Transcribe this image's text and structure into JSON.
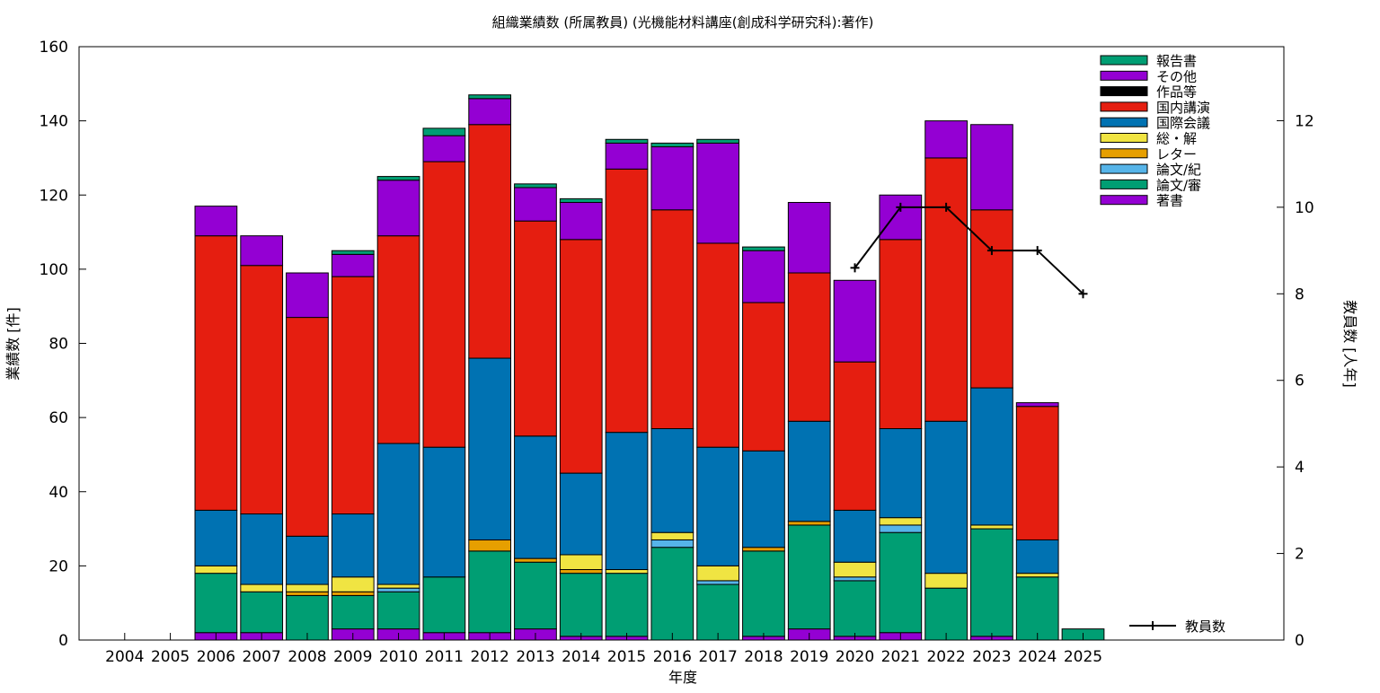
{
  "chart_data": {
    "type": "bar",
    "stacked": true,
    "title": "組織業績数 (所属教員) (光機能材料講座(創成科学研究科):著作)",
    "xlabel": "年度",
    "ylabel": "業績数 [件]",
    "y2label": "教員数 [人年]",
    "ylim": [
      0,
      160
    ],
    "y2lim": [
      0,
      13.71
    ],
    "yticks": [
      0,
      20,
      40,
      60,
      80,
      100,
      120,
      140,
      160
    ],
    "y2ticks": [
      0,
      2,
      4,
      6,
      8,
      10,
      12
    ],
    "categories": [
      "2004",
      "2005",
      "2006",
      "2007",
      "2008",
      "2009",
      "2010",
      "2011",
      "2012",
      "2013",
      "2014",
      "2015",
      "2016",
      "2017",
      "2018",
      "2019",
      "2020",
      "2021",
      "2022",
      "2023",
      "2024",
      "2025"
    ],
    "legend_position": "top-right",
    "grid": false,
    "series": [
      {
        "name": "著書",
        "color": "#9400d3",
        "values": [
          0,
          0,
          2,
          2,
          0,
          3,
          3,
          2,
          2,
          3,
          1,
          1,
          0,
          0,
          1,
          3,
          1,
          2,
          0,
          1,
          0,
          0
        ]
      },
      {
        "name": "論文/審",
        "color": "#009e73",
        "values": [
          0,
          0,
          16,
          11,
          12,
          9,
          10,
          15,
          22,
          18,
          17,
          17,
          25,
          15,
          23,
          28,
          15,
          27,
          14,
          29,
          17,
          3
        ]
      },
      {
        "name": "論文/紀",
        "color": "#56b4e9",
        "values": [
          0,
          0,
          0,
          0,
          0,
          0,
          1,
          0,
          0,
          0,
          0,
          0,
          2,
          1,
          0,
          0,
          1,
          2,
          0,
          0,
          0,
          0
        ]
      },
      {
        "name": "レター",
        "color": "#e69f00",
        "values": [
          0,
          0,
          0,
          0,
          1,
          1,
          0,
          0,
          3,
          1,
          1,
          0,
          0,
          0,
          1,
          1,
          0,
          0,
          0,
          0,
          0,
          0
        ]
      },
      {
        "name": "総・解",
        "color": "#f0e442",
        "values": [
          0,
          0,
          2,
          2,
          2,
          4,
          1,
          0,
          0,
          0,
          4,
          1,
          2,
          4,
          0,
          0,
          4,
          2,
          4,
          1,
          1,
          0
        ]
      },
      {
        "name": "国際会議",
        "color": "#0072b2",
        "values": [
          0,
          0,
          15,
          19,
          13,
          17,
          38,
          35,
          49,
          33,
          22,
          37,
          28,
          32,
          26,
          27,
          14,
          24,
          41,
          37,
          9,
          0
        ]
      },
      {
        "name": "国内講演",
        "color": "#e51e10",
        "values": [
          0,
          0,
          74,
          67,
          59,
          64,
          56,
          77,
          63,
          58,
          63,
          71,
          59,
          55,
          40,
          40,
          40,
          51,
          71,
          48,
          36,
          0
        ]
      },
      {
        "name": "作品等",
        "color": "#000000",
        "values": [
          0,
          0,
          0,
          0,
          0,
          0,
          0,
          0,
          0,
          0,
          0,
          0,
          0,
          0,
          0,
          0,
          0,
          0,
          0,
          0,
          0,
          0
        ]
      },
      {
        "name": "その他",
        "color": "#9400d3",
        "values": [
          0,
          0,
          8,
          8,
          12,
          6,
          15,
          7,
          7,
          9,
          10,
          7,
          17,
          27,
          14,
          19,
          22,
          12,
          10,
          23,
          1,
          0
        ]
      },
      {
        "name": "報告書",
        "color": "#009e73",
        "values": [
          0,
          0,
          0,
          0,
          0,
          1,
          1,
          2,
          1,
          1,
          1,
          1,
          1,
          1,
          1,
          0,
          0,
          0,
          0,
          0,
          0,
          0
        ]
      }
    ],
    "line_series": {
      "name": "教員数",
      "axis": "y2",
      "color": "#000000",
      "x": [
        "2020",
        "2021",
        "2022",
        "2023",
        "2024",
        "2025"
      ],
      "values": [
        8.6,
        10,
        10,
        9,
        9,
        8
      ]
    }
  }
}
